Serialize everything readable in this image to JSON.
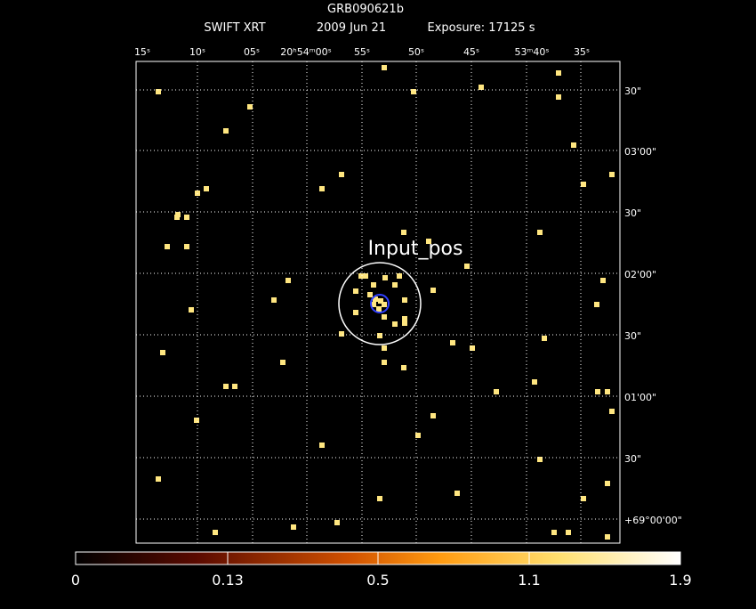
{
  "header": {
    "title": "GRB090621b",
    "instrument": "SWIFT XRT",
    "date": "2009 Jun 21",
    "exposure": "Exposure: 17125 s"
  },
  "ra_labels": [
    "15ˢ",
    "10ˢ",
    "05ˢ",
    "20ʰ54ᵐ00ˢ",
    "55ˢ",
    "50ˢ",
    "45ˢ",
    "53ᵐ40ˢ",
    "35ˢ"
  ],
  "dec_labels": [
    "30\"",
    "03'00\"",
    "30\"",
    "02'00\"",
    "30\"",
    "01'00\"",
    "30\"",
    "+69°00'00\""
  ],
  "region_label": "Input_pos",
  "colorbar": {
    "labels": [
      "0",
      "0.13",
      "0.5",
      "1.1",
      "1.9"
    ]
  }
}
